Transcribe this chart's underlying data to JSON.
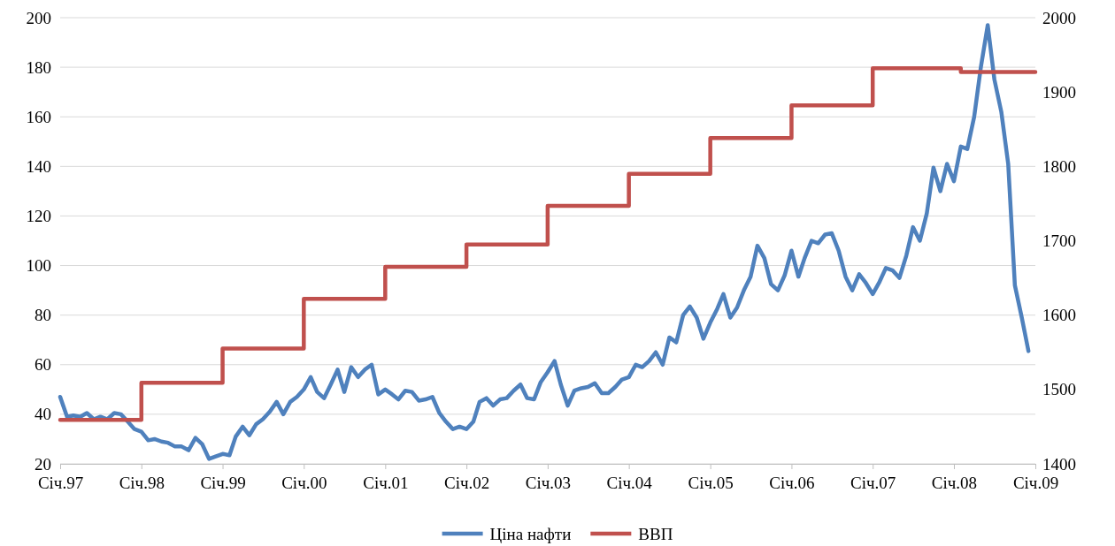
{
  "chart_data": {
    "type": "line",
    "xlim": [
      "1997-01",
      "2009-01"
    ],
    "xticks": [
      {
        "value": "1997-01",
        "label": "Січ.97"
      },
      {
        "value": "1998-01",
        "label": "Січ.98"
      },
      {
        "value": "1999-01",
        "label": "Січ.99"
      },
      {
        "value": "2000-01",
        "label": "Січ.00"
      },
      {
        "value": "2001-01",
        "label": "Січ.01"
      },
      {
        "value": "2002-01",
        "label": "Січ.02"
      },
      {
        "value": "2003-01",
        "label": "Січ.03"
      },
      {
        "value": "2004-01",
        "label": "Січ.04"
      },
      {
        "value": "2005-01",
        "label": "Січ.05"
      },
      {
        "value": "2006-01",
        "label": "Січ.06"
      },
      {
        "value": "2007-01",
        "label": "Січ.07"
      },
      {
        "value": "2008-01",
        "label": "Січ.08"
      },
      {
        "value": "2009-01",
        "label": "Січ.09"
      }
    ],
    "ylim": [
      20,
      200
    ],
    "yticks": [
      20,
      40,
      60,
      80,
      100,
      120,
      140,
      160,
      180,
      200
    ],
    "y2lim": [
      1400,
      2000
    ],
    "y2ticks": [
      1400,
      1500,
      1600,
      1700,
      1800,
      1900,
      2000
    ],
    "grid": "y",
    "legend": "bottom",
    "line_style": "solid",
    "marker": "none",
    "series": [
      {
        "name": "Ціна нафти",
        "color": "#4f81bd",
        "x": [
          "1997-01",
          "1997-02",
          "1997-03",
          "1997-04",
          "1997-05",
          "1997-06",
          "1997-07",
          "1997-08",
          "1997-09",
          "1997-10",
          "1997-11",
          "1997-12",
          "1998-01",
          "1998-02",
          "1998-03",
          "1998-04",
          "1998-05",
          "1998-06",
          "1998-07",
          "1998-08",
          "1998-09",
          "1998-10",
          "1998-11",
          "1998-12",
          "1999-01",
          "1999-02",
          "1999-03",
          "1999-04",
          "1999-05",
          "1999-06",
          "1999-07",
          "1999-08",
          "1999-09",
          "1999-10",
          "1999-11",
          "1999-12",
          "2000-01",
          "2000-02",
          "2000-03",
          "2000-04",
          "2000-05",
          "2000-06",
          "2000-07",
          "2000-08",
          "2000-09",
          "2000-10",
          "2000-11",
          "2000-12",
          "2001-01",
          "2001-02",
          "2001-03",
          "2001-04",
          "2001-05",
          "2001-06",
          "2001-07",
          "2001-08",
          "2001-09",
          "2001-10",
          "2001-11",
          "2001-12",
          "2002-01",
          "2002-02",
          "2002-03",
          "2002-04",
          "2002-05",
          "2002-06",
          "2002-07",
          "2002-08",
          "2002-09",
          "2002-10",
          "2002-11",
          "2002-12",
          "2003-01",
          "2003-02",
          "2003-03",
          "2003-04",
          "2003-05",
          "2003-06",
          "2003-07",
          "2003-08",
          "2003-09",
          "2003-10",
          "2003-11",
          "2003-12",
          "2004-01",
          "2004-02",
          "2004-03",
          "2004-04",
          "2004-05",
          "2004-06",
          "2004-07",
          "2004-08",
          "2004-09",
          "2004-10",
          "2004-11",
          "2004-12",
          "2005-01",
          "2005-02",
          "2005-03",
          "2005-04",
          "2005-05",
          "2005-06",
          "2005-07",
          "2005-08",
          "2005-09",
          "2005-10",
          "2005-11",
          "2005-12",
          "2006-01",
          "2006-02",
          "2006-03",
          "2006-04",
          "2006-05",
          "2006-06",
          "2006-07",
          "2006-08",
          "2006-09",
          "2006-10",
          "2006-11",
          "2006-12",
          "2007-01",
          "2007-02",
          "2007-03",
          "2007-04",
          "2007-05",
          "2007-06",
          "2007-07",
          "2007-08",
          "2007-09",
          "2007-10",
          "2007-11",
          "2007-12",
          "2008-01",
          "2008-02",
          "2008-03",
          "2008-04",
          "2008-05",
          "2008-06",
          "2008-07",
          "2008-08",
          "2008-09",
          "2008-10",
          "2008-11",
          "2008-12"
        ],
        "values": [
          47,
          39,
          39.5,
          39,
          40.5,
          38,
          39,
          38,
          40.5,
          40,
          37,
          34,
          33,
          29.5,
          30,
          29,
          28.5,
          27,
          27,
          25.5,
          30.5,
          28,
          22,
          23,
          24,
          23.5,
          31,
          35,
          31.5,
          36,
          38,
          41,
          45,
          40,
          45,
          47,
          50,
          55,
          49,
          46.5,
          52,
          58,
          49,
          59,
          55,
          58,
          60,
          48,
          50,
          48,
          46,
          49.5,
          49,
          45.5,
          46,
          47,
          40.5,
          37,
          34,
          35,
          34,
          37,
          45,
          46.5,
          43.5,
          46,
          46.5,
          49.5,
          52,
          46.5,
          46,
          53,
          57,
          61.5,
          52,
          43.5,
          49.5,
          50.5,
          51,
          52.5,
          48.5,
          48.5,
          51,
          54,
          55,
          60,
          59,
          61.5,
          65,
          60,
          71,
          69,
          80,
          83.5,
          79,
          70.5,
          77,
          82.5,
          88.5,
          79,
          83,
          90,
          95.5,
          108,
          103,
          92.5,
          90,
          96,
          106,
          95.5,
          103,
          110,
          109,
          112.5,
          113,
          106,
          95.5,
          90,
          96.5,
          93,
          88.5,
          93.5,
          99,
          98,
          95,
          104,
          115.5,
          110,
          121,
          139.5,
          130,
          141,
          134,
          148,
          147,
          160,
          180,
          197,
          175,
          162,
          141,
          92,
          79,
          65.5
        ]
      },
      {
        "name": "ВВП",
        "color": "#c0504d",
        "type": "step",
        "axis": "y2",
        "x": [
          "1997-01",
          "1998-01",
          "1999-01",
          "2000-01",
          "2001-01",
          "2002-01",
          "2003-01",
          "2004-01",
          "2005-01",
          "2006-01",
          "2007-01",
          "2008-01",
          "2008-02",
          "2009-01"
        ],
        "values": [
          1459,
          1509,
          1555,
          1622,
          1665,
          1695,
          1747,
          1790,
          1838,
          1882,
          1932,
          1932,
          1927,
          1927
        ]
      }
    ]
  }
}
